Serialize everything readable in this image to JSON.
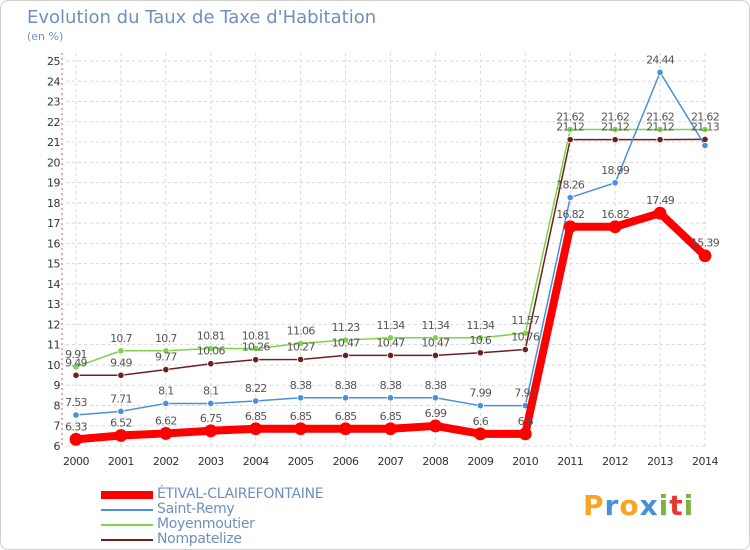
{
  "title": "Evolution du Taux de Taxe d'Habitation",
  "subtitle": "(en %)",
  "logo": {
    "text": "Proxiti",
    "letters": [
      {
        "ch": "P",
        "color": "#f5a623"
      },
      {
        "ch": "r",
        "color": "#4a90d9"
      },
      {
        "ch": "o",
        "color": "#f5a623"
      },
      {
        "ch": "x",
        "color": "#4a90d9"
      },
      {
        "ch": "i",
        "color": "#7cb342"
      },
      {
        "ch": "t",
        "color": "#e53935"
      },
      {
        "ch": "i",
        "color": "#7cb342"
      }
    ]
  },
  "chart_data": {
    "type": "line",
    "title": "Evolution du Taux de Taxe d'Habitation",
    "ylabel": "(en %)",
    "xlabel": "",
    "ylim": [
      6,
      25
    ],
    "yticks": [
      "6",
      "7",
      "8",
      "9",
      "10",
      "11",
      "12",
      "13",
      "14",
      "15",
      "16",
      "17",
      "18",
      "19",
      "20",
      "21",
      "22",
      "23",
      "24",
      "25"
    ],
    "categories": [
      "2000",
      "2001",
      "2002",
      "2003",
      "2004",
      "2005",
      "2006",
      "2007",
      "2008",
      "2009",
      "2010",
      "2011",
      "2012",
      "2013",
      "2014"
    ],
    "grid": true,
    "series": [
      {
        "name": "Moyenmoutier",
        "color": "#7fd34a",
        "values": [
          9.91,
          10.7,
          10.7,
          10.81,
          10.81,
          11.06,
          11.23,
          11.34,
          11.34,
          11.34,
          11.57,
          21.62,
          21.62,
          21.62,
          21.62
        ],
        "labels": [
          "9.91",
          "10.7",
          "10.7",
          "10.81",
          "10.81",
          "11.06",
          "11.23",
          "11.34",
          "11.34",
          "11.34",
          "11.57",
          "21.62",
          "21.62",
          "21.62",
          "21.62"
        ]
      },
      {
        "name": "Nompatelize",
        "color": "#6e1f1f",
        "values": [
          9.49,
          9.49,
          9.77,
          10.06,
          10.26,
          10.27,
          10.47,
          10.47,
          10.47,
          10.6,
          10.76,
          21.12,
          21.12,
          21.12,
          21.13
        ],
        "labels": [
          "9.49",
          "9.49",
          "9.77",
          "10.06",
          "10.26",
          "10.27",
          "10.47",
          "10.47",
          "10.47",
          "10.6",
          "10.76",
          "21.12",
          "21.12",
          "21.12",
          "21.13"
        ]
      },
      {
        "name": "Saint-Remy",
        "color": "#4a90d9",
        "values": [
          7.53,
          7.71,
          8.1,
          8.1,
          8.22,
          8.38,
          8.38,
          8.38,
          8.38,
          7.99,
          7.99,
          18.26,
          18.99,
          24.44,
          20.83
        ],
        "labels": [
          "7.53",
          "7.71",
          "8.1",
          "8.1",
          "8.22",
          "8.38",
          "8.38",
          "8.38",
          "8.38",
          "7.99",
          "7.99",
          "18.26",
          "18.99",
          "24.44",
          ""
        ]
      },
      {
        "name": "ÉTIVAL-CLAIREFONTAINE",
        "color": "#ff0000",
        "values": [
          6.33,
          6.52,
          6.62,
          6.75,
          6.85,
          6.85,
          6.85,
          6.85,
          6.99,
          6.6,
          6.6,
          16.82,
          16.82,
          17.49,
          15.39
        ],
        "labels": [
          "6.33",
          "6.52",
          "6.62",
          "6.75",
          "6.85",
          "6.85",
          "6.85",
          "6.85",
          "6.99",
          "6.6",
          "6.6",
          "16.82",
          "16.82",
          "17.49",
          "15.39"
        ]
      }
    ]
  },
  "legend": [
    {
      "label": "ÉTIVAL-CLAIREFONTAINE",
      "color": "#ff0000",
      "thick": true
    },
    {
      "label": "Saint-Remy",
      "color": "#4a90d9",
      "thick": false
    },
    {
      "label": "Moyenmoutier",
      "color": "#7fd34a",
      "thick": false
    },
    {
      "label": "Nompatelize",
      "color": "#6e1f1f",
      "thick": false
    }
  ]
}
